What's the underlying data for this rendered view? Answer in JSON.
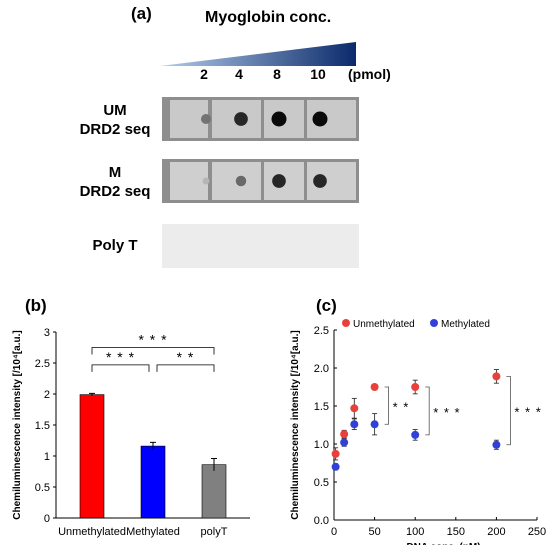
{
  "panel_a": {
    "label": "(a)",
    "title": "Myoglobin conc.",
    "unit": "(pmol)",
    "lanes": [
      "2",
      "4",
      "8",
      "10"
    ],
    "rows": [
      {
        "label_line1": "UM",
        "label_line2": "DRD2 seq",
        "dot_levels": [
          0.45,
          0.85,
          1.0,
          1.0
        ]
      },
      {
        "label_line1": "M",
        "label_line2": "DRD2 seq",
        "dot_levels": [
          0.1,
          0.5,
          0.85,
          0.85
        ]
      },
      {
        "label_line1": "Poly T",
        "label_line2": "",
        "dot_levels": [
          0,
          0,
          0,
          0
        ]
      }
    ]
  },
  "chart_data": [
    {
      "panel": "(b)",
      "type": "bar",
      "categories": [
        "Unmethylated",
        "Methylated",
        "polyT"
      ],
      "values": [
        1.99,
        1.16,
        0.86
      ],
      "errors": [
        0.02,
        0.06,
        0.1
      ],
      "colors": [
        "#ff0000",
        "#0000ff",
        "#808080"
      ],
      "ylabel": "Chemiluminescence intensity [/10⁴[a.u.]",
      "ylim": [
        0,
        3
      ],
      "yticks": [
        "0",
        "0.5",
        "1",
        "1.5",
        "2",
        "2.5",
        "3"
      ],
      "significance": [
        {
          "from": 0,
          "to": 2,
          "label": "* * *"
        },
        {
          "from": 0,
          "to": 1,
          "label": "* * *"
        },
        {
          "from": 1,
          "to": 2,
          "label": "* *"
        }
      ]
    },
    {
      "panel": "(c)",
      "type": "scatter",
      "xlabel": "DNA conc. (nM)",
      "ylabel": "Chemiluminescence intensity [/10⁴[a.u.]",
      "xlim": [
        0,
        250
      ],
      "ylim": [
        0,
        2.5
      ],
      "xticks": [
        "0",
        "50",
        "100",
        "150",
        "200",
        "250"
      ],
      "yticks": [
        "0.0",
        "0.5",
        "1.0",
        "1.5",
        "2.0",
        "2.5"
      ],
      "legend_position": "top",
      "series": [
        {
          "name": "Unmethylated",
          "color": "#e8413c",
          "x": [
            2,
            12.5,
            25,
            50,
            100,
            200
          ],
          "y": [
            0.87,
            1.13,
            1.47,
            1.75,
            1.75,
            1.89
          ],
          "err": [
            0.08,
            0.05,
            0.13,
            0.03,
            0.09,
            0.09
          ]
        },
        {
          "name": "Methylated",
          "color": "#3040d8",
          "x": [
            2,
            12.5,
            25,
            50,
            100,
            200
          ],
          "y": [
            0.7,
            1.02,
            1.26,
            1.26,
            1.12,
            0.99
          ],
          "err": [
            0.04,
            0.05,
            0.07,
            0.14,
            0.07,
            0.06
          ]
        }
      ],
      "significance": [
        {
          "x": 50,
          "label": "* *"
        },
        {
          "x": 100,
          "label": "* * *"
        },
        {
          "x": 200,
          "label": "* * *"
        }
      ]
    }
  ]
}
